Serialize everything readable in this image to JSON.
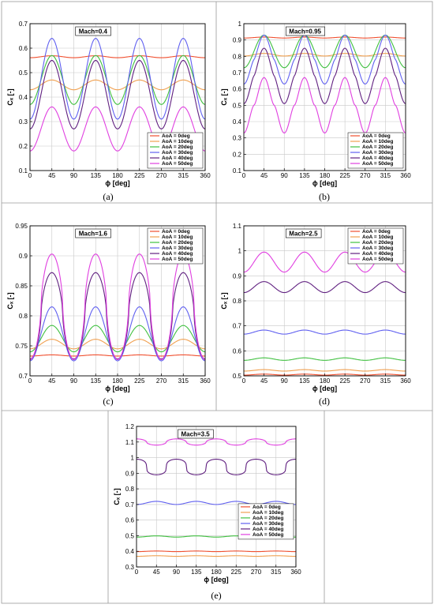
{
  "figure": {
    "captions": [
      "(a)",
      "(b)",
      "(c)",
      "(d)",
      "(e)"
    ]
  },
  "series_colors": [
    "#f05030",
    "#f0a050",
    "#40c040",
    "#6060f0",
    "#602080",
    "#e040e0"
  ],
  "chart_data": [
    {
      "type": "line",
      "title": "Mach=0.4",
      "xlabel": "ϕ [deg]",
      "ylabel": "Cₓ [-]",
      "xlim": [
        0,
        360
      ],
      "ylim": [
        0.1,
        0.7
      ],
      "xticks": [
        0,
        45,
        90,
        135,
        180,
        225,
        270,
        315,
        360
      ],
      "yticks": [
        0.1,
        0.2,
        0.3,
        0.4,
        0.5,
        0.6,
        0.7
      ],
      "grid": true,
      "legend_position": "bottom-right",
      "series": [
        {
          "name": "AoA = 0deg",
          "mean": 0.565,
          "amplitude": 0.004,
          "phase": "max-at-90",
          "sharpness": 1
        },
        {
          "name": "AoA = 10deg",
          "mean": 0.45,
          "amplitude": 0.02,
          "phase": "max-at-90",
          "sharpness": 1
        },
        {
          "name": "AoA = 20deg",
          "mean": 0.47,
          "amplitude": 0.1,
          "phase": "max-at-90",
          "sharpness": 1
        },
        {
          "name": "AoA = 30deg",
          "mean": 0.475,
          "amplitude": 0.165,
          "phase": "max-at-90",
          "sharpness": 1
        },
        {
          "name": "AoA = 40deg",
          "mean": 0.41,
          "amplitude": 0.14,
          "phase": "max-at-90",
          "sharpness": 1
        },
        {
          "name": "AoA = 50deg",
          "mean": 0.27,
          "amplitude": 0.09,
          "phase": "max-at-90",
          "sharpness": 1
        }
      ]
    },
    {
      "type": "line",
      "title": "Mach=0.95",
      "xlabel": "ϕ [deg]",
      "ylabel": "Cₓ [-]",
      "xlim": [
        0,
        360
      ],
      "ylim": [
        0.1,
        1.0
      ],
      "xticks": [
        0,
        45,
        90,
        135,
        180,
        225,
        270,
        315,
        360
      ],
      "yticks": [
        0.1,
        0.2,
        0.3,
        0.4,
        0.5,
        0.6,
        0.7,
        0.8,
        0.9,
        1
      ],
      "grid": true,
      "legend_position": "bottom-right",
      "series": [
        {
          "name": "AoA = 0deg",
          "mean": 0.915,
          "amplitude": 0.003,
          "phase": "max-at-90",
          "sharpness": 1
        },
        {
          "name": "AoA = 10deg",
          "mean": 0.81,
          "amplitude": 0.008,
          "phase": "max-at-90",
          "sharpness": 1
        },
        {
          "name": "AoA = 20deg",
          "mean": 0.83,
          "amplitude": 0.1,
          "phase": "max-at-90",
          "sharpness": 1
        },
        {
          "name": "AoA = 30deg",
          "mean": 0.78,
          "amplitude": 0.15,
          "phase": "max-at-90",
          "sharpness": 1.4
        },
        {
          "name": "AoA = 40deg",
          "mean": 0.68,
          "amplitude": 0.17,
          "phase": "max-at-90",
          "sharpness": 1.4
        },
        {
          "name": "AoA = 50deg",
          "mean": 0.5,
          "amplitude": 0.17,
          "phase": "max-at-90",
          "sharpness": 1.6
        }
      ]
    },
    {
      "type": "line",
      "title": "Mach=1.6",
      "xlabel": "ϕ [deg]",
      "ylabel": "Cₓ [-]",
      "xlim": [
        0,
        360
      ],
      "ylim": [
        0.7,
        0.95
      ],
      "xticks": [
        0,
        45,
        90,
        135,
        180,
        225,
        270,
        315,
        360
      ],
      "yticks": [
        0.7,
        0.75,
        0.8,
        0.85,
        0.9,
        0.95
      ],
      "grid": true,
      "legend_position": "top-right",
      "series": [
        {
          "name": "AoA = 0deg",
          "mean": 0.734,
          "amplitude": 0.001,
          "phase": "max-at-90",
          "sharpness": 1
        },
        {
          "name": "AoA = 10deg",
          "mean": 0.753,
          "amplitude": 0.008,
          "phase": "max-at-90",
          "sharpness": 1
        },
        {
          "name": "AoA = 20deg",
          "mean": 0.762,
          "amplitude": 0.022,
          "phase": "max-at-90",
          "sharpness": 1
        },
        {
          "name": "AoA = 30deg",
          "mean": 0.77,
          "amplitude": 0.045,
          "phase": "max-at-90",
          "sharpness": 1
        },
        {
          "name": "AoA = 40deg",
          "mean": 0.8,
          "amplitude": 0.072,
          "phase": "max-at-90",
          "sharpness": 0.6
        },
        {
          "name": "AoA = 50deg",
          "mean": 0.815,
          "amplitude": 0.088,
          "phase": "max-at-90",
          "sharpness": 0.6
        }
      ]
    },
    {
      "type": "line",
      "title": "Mach=2.5",
      "xlabel": "ϕ [deg]",
      "ylabel": "Cₓ [-]",
      "xlim": [
        0,
        360
      ],
      "ylim": [
        0.5,
        1.1
      ],
      "xticks": [
        0,
        45,
        90,
        135,
        180,
        225,
        270,
        315,
        360
      ],
      "yticks": [
        0.5,
        0.6,
        0.7,
        0.8,
        0.9,
        1,
        1.1
      ],
      "grid": true,
      "legend_position": "top-right",
      "series": [
        {
          "name": "AoA = 0deg",
          "mean": 0.505,
          "amplitude": 0.002,
          "phase": "max-at-90",
          "sharpness": 1
        },
        {
          "name": "AoA = 10deg",
          "mean": 0.522,
          "amplitude": 0.003,
          "phase": "max-at-90",
          "sharpness": 1
        },
        {
          "name": "AoA = 20deg",
          "mean": 0.567,
          "amplitude": 0.005,
          "phase": "max-at-90",
          "sharpness": 1
        },
        {
          "name": "AoA = 30deg",
          "mean": 0.675,
          "amplitude": 0.008,
          "phase": "max-at-90",
          "sharpness": 1
        },
        {
          "name": "AoA = 40deg",
          "mean": 0.855,
          "amplitude": 0.022,
          "phase": "max-at-90",
          "sharpness": 1
        },
        {
          "name": "AoA = 50deg",
          "mean": 0.955,
          "amplitude": 0.04,
          "phase": "max-at-90",
          "sharpness": 1
        }
      ]
    },
    {
      "type": "line",
      "title": "Mach=3.5",
      "xlabel": "ϕ [deg]",
      "ylabel": "Cₓ [-]",
      "xlim": [
        0,
        360
      ],
      "ylim": [
        0.3,
        1.2
      ],
      "xticks": [
        0,
        45,
        90,
        135,
        180,
        225,
        270,
        315,
        360
      ],
      "yticks": [
        0.3,
        0.4,
        0.5,
        0.6,
        0.7,
        0.8,
        0.9,
        1,
        1.1,
        1.2
      ],
      "grid": true,
      "legend_position": "middle-right",
      "series": [
        {
          "name": "AoA = 0deg",
          "mean": 0.4,
          "amplitude": 0.002,
          "phase": "max-at-90",
          "sharpness": 1
        },
        {
          "name": "AoA = 10deg",
          "mean": 0.37,
          "amplitude": 0.002,
          "phase": "max-at-90",
          "sharpness": 1
        },
        {
          "name": "AoA = 20deg",
          "mean": 0.495,
          "amplitude": 0.004,
          "phase": "max-at-90",
          "sharpness": 1
        },
        {
          "name": "AoA = 30deg",
          "mean": 0.71,
          "amplitude": 0.01,
          "phase": "max-at-90",
          "sharpness": 1
        },
        {
          "name": "AoA = 40deg",
          "mean": 0.94,
          "amplitude": 0.05,
          "phase": "max-at-0",
          "sharpness": 0.3
        },
        {
          "name": "AoA = 50deg",
          "mean": 1.1,
          "amplitude": 0.02,
          "phase": "max-at-0",
          "sharpness": 0.5
        }
      ]
    }
  ]
}
